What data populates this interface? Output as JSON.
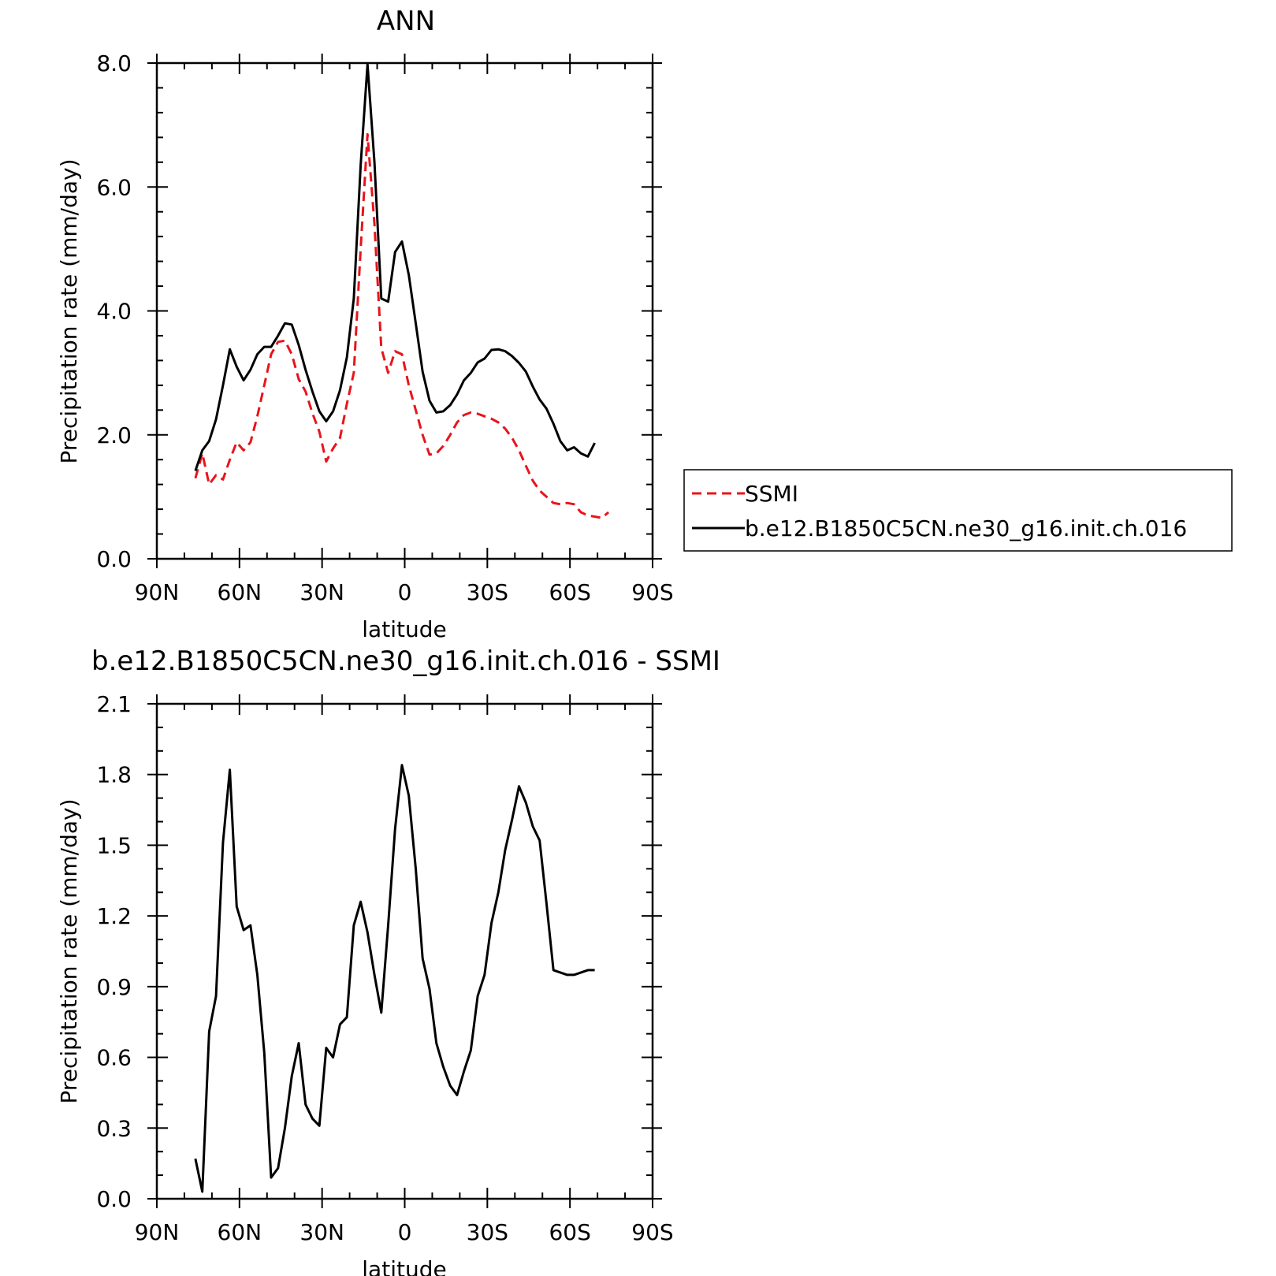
{
  "chart_data": [
    {
      "type": "line",
      "title": "ANN",
      "xlabel": "latitude",
      "ylabel": "Precipitation rate (mm/day)",
      "xlim": [
        90,
        -90
      ],
      "ylim": [
        0,
        8
      ],
      "xticks": [
        90,
        60,
        30,
        0,
        -30,
        -60,
        -90
      ],
      "xtick_labels": [
        "90N",
        "60N",
        "30N",
        "0",
        "30S",
        "60S",
        "90S"
      ],
      "yticks": [
        0,
        2,
        4,
        6,
        8
      ],
      "ytick_labels": [
        "0.0",
        "2.0",
        "4.0",
        "6.0",
        "8.0"
      ],
      "legend_position": "right",
      "series": [
        {
          "name": "SSMI",
          "color": "#e8141b",
          "dash": "dashed",
          "x": [
            76,
            73.5,
            71,
            68.5,
            66,
            63.5,
            61,
            58.5,
            56,
            53.5,
            51,
            48.5,
            46,
            43.5,
            41,
            38.5,
            36,
            33.5,
            31,
            28.5,
            26,
            23.5,
            21,
            18.5,
            16,
            13.5,
            11,
            8.5,
            6,
            3.5,
            1,
            -1.5,
            -4,
            -6.5,
            -9,
            -11.5,
            -14,
            -16.5,
            -19,
            -21.5,
            -24,
            -26.5,
            -29,
            -31.5,
            -34,
            -36.5,
            -39,
            -41.5,
            -44,
            -46.5,
            -49,
            -51.5,
            -54,
            -56.5,
            -59,
            -61.5,
            -64,
            -66.5,
            -69,
            -71.5,
            -74
          ],
          "values": [
            1.3,
            1.7,
            1.2,
            1.35,
            1.28,
            1.6,
            1.88,
            1.75,
            1.88,
            2.3,
            2.8,
            3.3,
            3.5,
            3.52,
            3.3,
            2.9,
            2.7,
            2.35,
            2.05,
            1.57,
            1.78,
            1.95,
            2.5,
            3.0,
            5.0,
            6.85,
            5.4,
            3.4,
            3.0,
            3.35,
            3.3,
            2.8,
            2.4,
            2.0,
            1.68,
            1.7,
            1.82,
            2.0,
            2.2,
            2.32,
            2.36,
            2.34,
            2.3,
            2.26,
            2.2,
            2.1,
            1.95,
            1.75,
            1.5,
            1.26,
            1.1,
            1.0,
            0.9,
            0.88,
            0.9,
            0.88,
            0.75,
            0.7,
            0.68,
            0.66,
            0.75
          ]
        },
        {
          "name": "b.e12.B1850C5CN.ne30_g16.init.ch.016",
          "color": "#000000",
          "dash": "solid",
          "x": [
            76,
            73.5,
            71,
            68.5,
            66,
            63.5,
            61,
            58.5,
            56,
            53.5,
            51,
            48.5,
            46,
            43.5,
            41,
            38.5,
            36,
            33.5,
            31,
            28.5,
            26,
            23.5,
            21,
            18.5,
            16,
            13.5,
            11,
            8.5,
            6,
            3.5,
            1,
            -1.5,
            -4,
            -6.5,
            -9,
            -11.5,
            -14,
            -16.5,
            -19,
            -21.5,
            -24,
            -26.5,
            -29,
            -31.5,
            -34,
            -36.5,
            -39,
            -41.5,
            -44,
            -46.5,
            -49,
            -51.5,
            -54,
            -56.5,
            -59,
            -61.5,
            -64,
            -66.5,
            -69
          ],
          "values": [
            1.42,
            1.75,
            1.9,
            2.25,
            2.8,
            3.38,
            3.1,
            2.88,
            3.05,
            3.3,
            3.42,
            3.42,
            3.6,
            3.8,
            3.78,
            3.45,
            3.05,
            2.7,
            2.38,
            2.22,
            2.38,
            2.72,
            3.25,
            4.2,
            6.35,
            7.98,
            6.4,
            4.2,
            4.15,
            4.95,
            5.12,
            4.58,
            3.8,
            3.02,
            2.55,
            2.36,
            2.38,
            2.48,
            2.65,
            2.88,
            3.0,
            3.17,
            3.23,
            3.37,
            3.38,
            3.35,
            3.27,
            3.16,
            3.02,
            2.78,
            2.57,
            2.42,
            2.18,
            1.9,
            1.75,
            1.8,
            1.7,
            1.65,
            1.87
          ]
        }
      ]
    },
    {
      "type": "line",
      "title": "b.e12.B1850C5CN.ne30_g16.init.ch.016 - SSMI",
      "xlabel": "latitude",
      "ylabel": "Precipitation rate (mm/day)",
      "xlim": [
        90,
        -90
      ],
      "ylim": [
        0,
        2.1
      ],
      "xticks": [
        90,
        60,
        30,
        0,
        -30,
        -60,
        -90
      ],
      "xtick_labels": [
        "90N",
        "60N",
        "30N",
        "0",
        "30S",
        "60S",
        "90S"
      ],
      "yticks": [
        0,
        0.3,
        0.6,
        0.9,
        1.2,
        1.5,
        1.8,
        2.1
      ],
      "ytick_labels": [
        "0.0",
        "0.3",
        "0.6",
        "0.9",
        "1.2",
        "1.5",
        "1.8",
        "2.1"
      ],
      "series": [
        {
          "color": "#000000",
          "dash": "solid",
          "x": [
            76,
            73.5,
            71,
            68.5,
            66,
            63.5,
            61,
            58.5,
            56,
            53.5,
            51,
            48.5,
            46,
            43.5,
            41,
            38.5,
            36,
            33.5,
            31,
            28.5,
            26,
            23.5,
            21,
            18.5,
            16,
            13.5,
            11,
            8.5,
            6,
            3.5,
            1,
            -1.5,
            -4,
            -6.5,
            -9,
            -11.5,
            -14,
            -16.5,
            -19,
            -21.5,
            -24,
            -26.5,
            -29,
            -31.5,
            -34,
            -36.5,
            -39,
            -41.5,
            -44,
            -46.5,
            -49,
            -51.5,
            -54,
            -56.5,
            -59,
            -61.5,
            -64,
            -66.5,
            -69
          ],
          "values": [
            0.17,
            0.03,
            0.71,
            0.86,
            1.51,
            1.82,
            1.24,
            1.14,
            1.16,
            0.95,
            0.62,
            0.09,
            0.13,
            0.3,
            0.52,
            0.66,
            0.4,
            0.34,
            0.31,
            0.64,
            0.6,
            0.74,
            0.77,
            1.16,
            1.26,
            1.13,
            0.95,
            0.79,
            1.16,
            1.57,
            1.84,
            1.71,
            1.4,
            1.02,
            0.89,
            0.66,
            0.56,
            0.48,
            0.44,
            0.54,
            0.63,
            0.86,
            0.95,
            1.17,
            1.3,
            1.48,
            1.61,
            1.75,
            1.68,
            1.58,
            1.52,
            1.25,
            0.97,
            0.96,
            0.95,
            0.95,
            0.96,
            0.97,
            0.97
          ]
        }
      ]
    }
  ]
}
